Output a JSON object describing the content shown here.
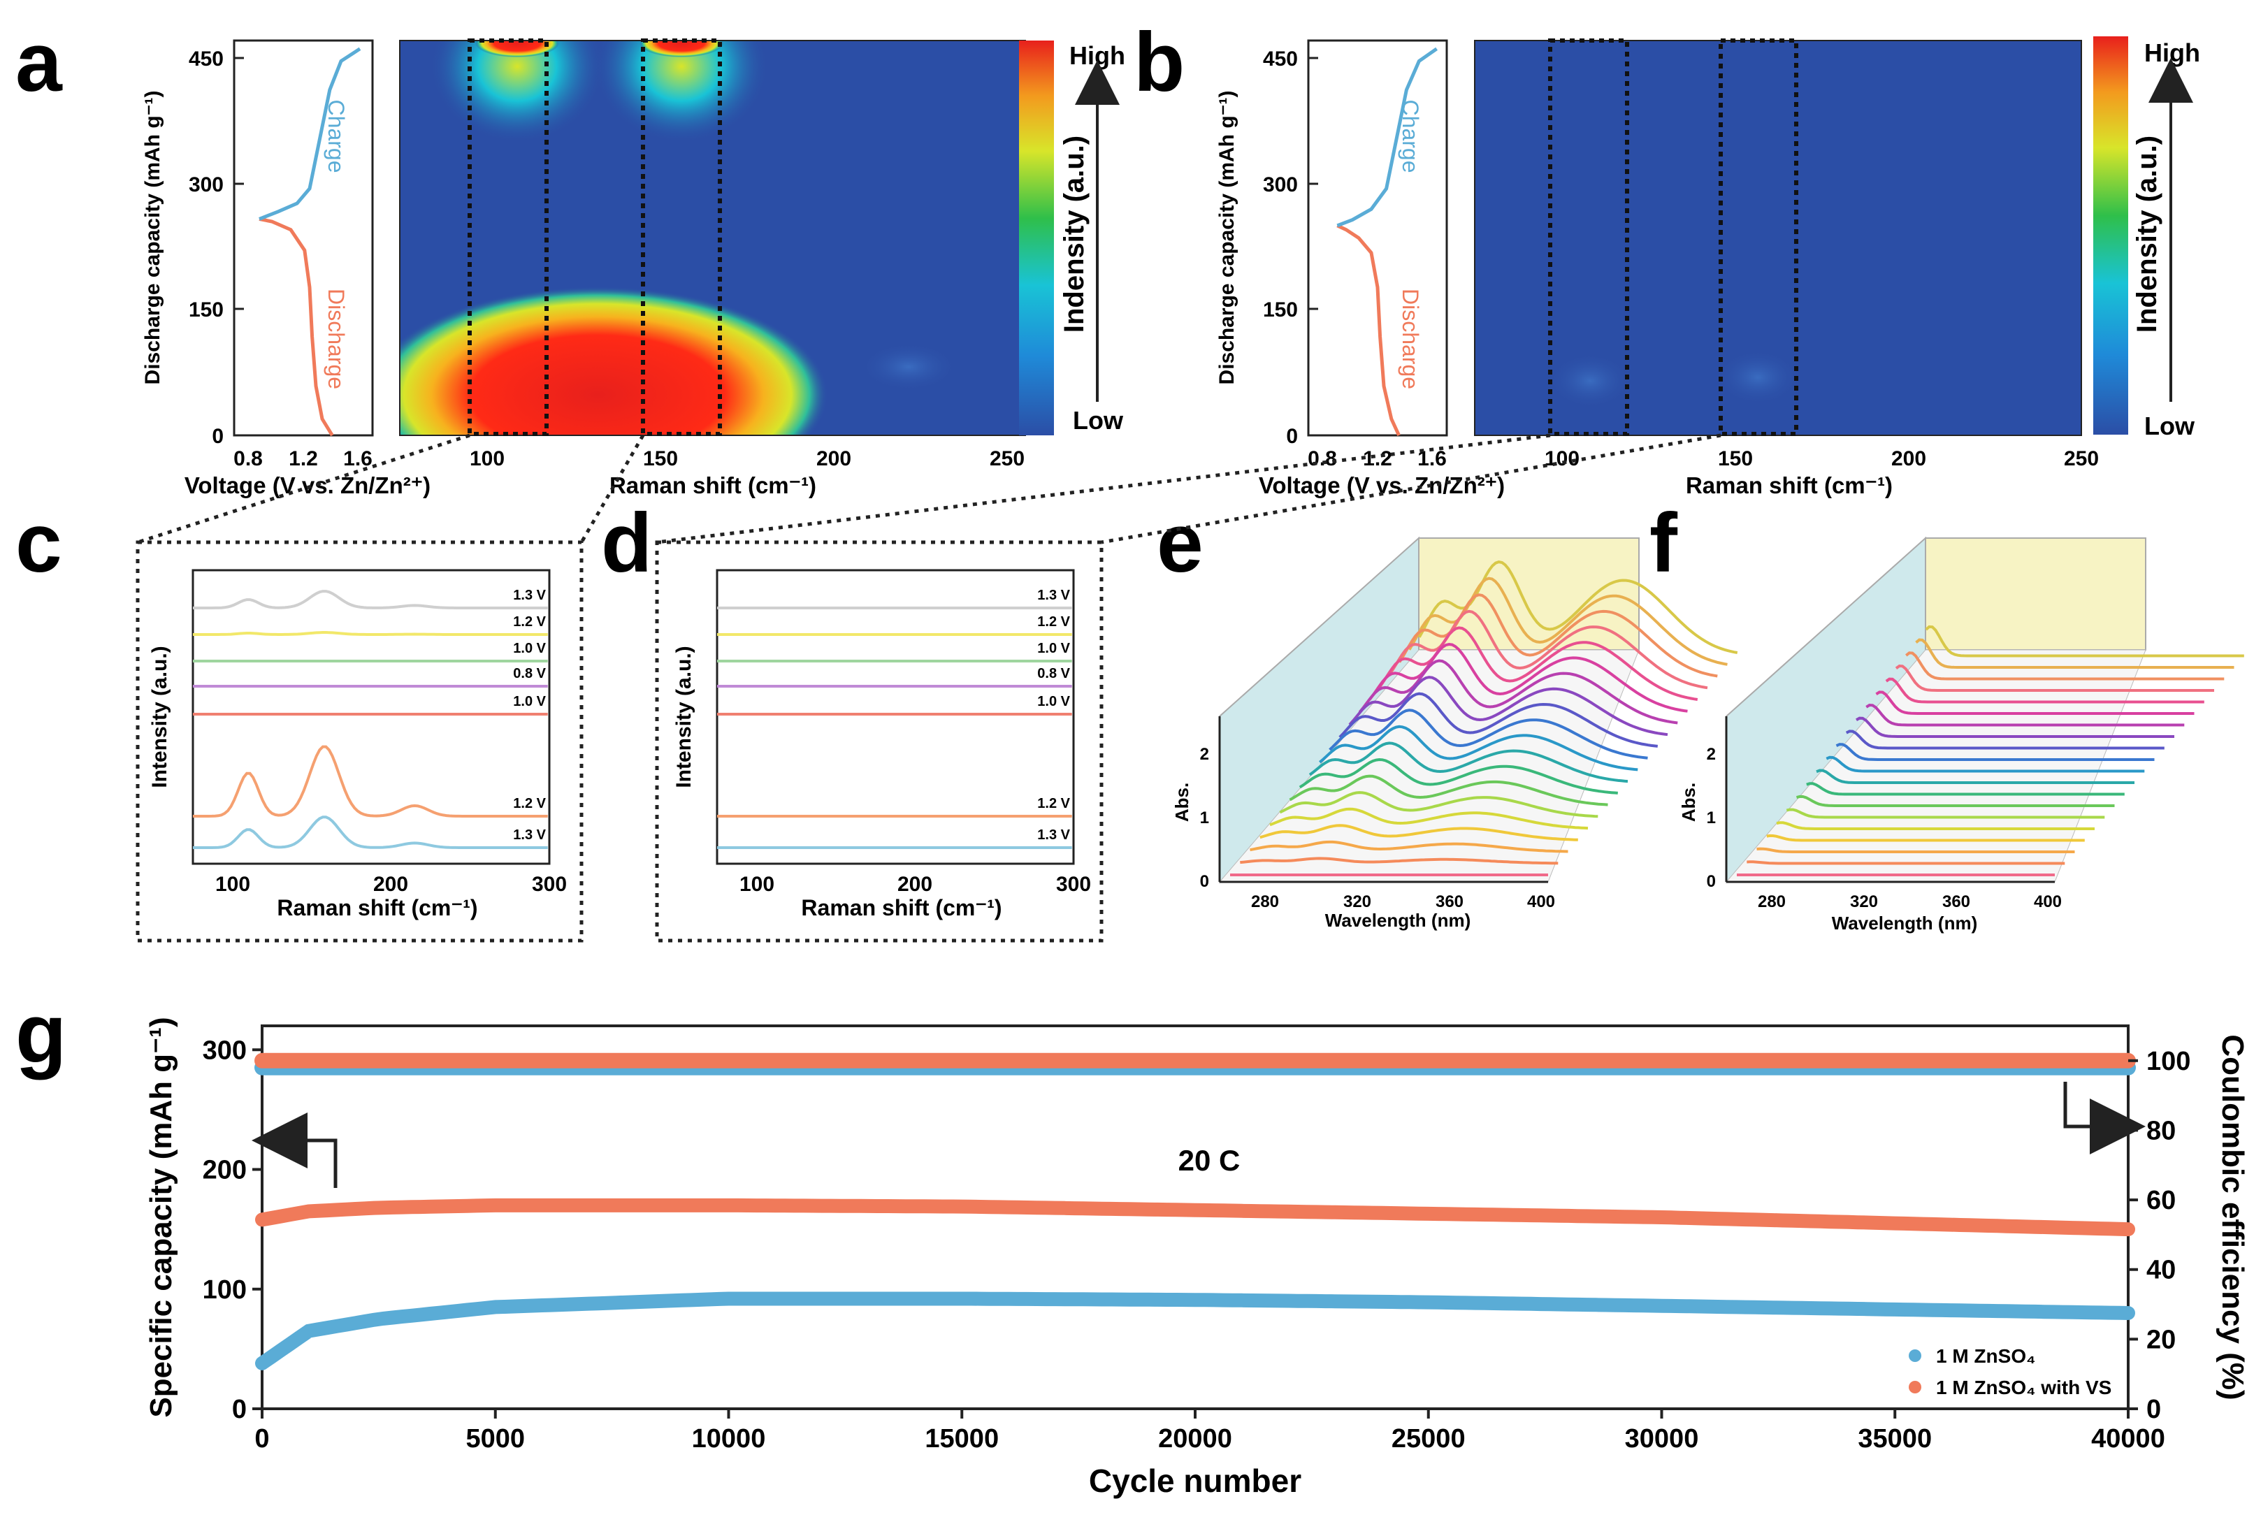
{
  "panel_letters": [
    "a",
    "b",
    "c",
    "d",
    "e",
    "f",
    "g"
  ],
  "colors": {
    "blue_line": "#5aacd6",
    "orange_line": "#f07a5a",
    "heat_bg": "#2b4ea6",
    "cyan_panel": "#cfe9ec",
    "yellow_panel": "#f7f3c4"
  },
  "chart_data": [
    {
      "id": "a_curve",
      "type": "line",
      "xlabel": "Voltage (V vs. Zn/Zn²⁺)",
      "ylabel": "Discharge capacity (mAh g⁻¹)",
      "xticks": [
        "0.8",
        "1.2",
        "1.6"
      ],
      "yticks": [
        "0",
        "150",
        "300",
        "450"
      ],
      "xlim": [
        0.6,
        1.7
      ],
      "ylim": [
        0,
        480
      ],
      "labels": {
        "charge": "Charge",
        "discharge": "Discharge"
      },
      "series": [
        {
          "name": "Discharge",
          "color": "#f07a5a",
          "points": [
            [
              1.38,
              0
            ],
            [
              1.3,
              20
            ],
            [
              1.25,
              60
            ],
            [
              1.22,
              120
            ],
            [
              1.2,
              180
            ],
            [
              1.16,
              225
            ],
            [
              1.05,
              250
            ],
            [
              0.9,
              260
            ],
            [
              0.8,
              263
            ]
          ]
        },
        {
          "name": "Charge",
          "color": "#5aacd6",
          "points": [
            [
              0.8,
              263
            ],
            [
              0.95,
              272
            ],
            [
              1.1,
              282
            ],
            [
              1.2,
              300
            ],
            [
              1.28,
              360
            ],
            [
              1.36,
              420
            ],
            [
              1.45,
              455
            ],
            [
              1.6,
              470
            ]
          ]
        }
      ]
    },
    {
      "id": "a_heatmap",
      "type": "heatmap",
      "xlabel": "Raman shift (cm⁻¹)",
      "xticks": [
        "100",
        "150",
        "200",
        "250"
      ],
      "xlim": [
        75,
        250
      ],
      "colorbar": {
        "title": "Indensity (a.u.)",
        "high": "High",
        "low": "Low"
      }
    },
    {
      "id": "b_curve",
      "type": "line",
      "xlabel": "Voltage (V vs. Zn/Zn²⁺)",
      "ylabel": "Discharge capacity (mAh g⁻¹)",
      "xticks": [
        "0.8",
        "1.2",
        "1.6"
      ],
      "yticks": [
        "0",
        "150",
        "300",
        "450"
      ],
      "xlim": [
        0.6,
        1.7
      ],
      "ylim": [
        0,
        480
      ],
      "labels": {
        "charge": "Charge",
        "discharge": "Discharge"
      },
      "series": [
        {
          "name": "Discharge",
          "color": "#f07a5a",
          "points": [
            [
              1.32,
              0
            ],
            [
              1.26,
              20
            ],
            [
              1.2,
              60
            ],
            [
              1.17,
              120
            ],
            [
              1.15,
              180
            ],
            [
              1.1,
              222
            ],
            [
              1.0,
              240
            ],
            [
              0.9,
              250
            ],
            [
              0.83,
              255
            ]
          ]
        },
        {
          "name": "Charge",
          "color": "#5aacd6",
          "points": [
            [
              0.83,
              255
            ],
            [
              0.95,
              262
            ],
            [
              1.1,
              275
            ],
            [
              1.22,
              300
            ],
            [
              1.3,
              360
            ],
            [
              1.38,
              420
            ],
            [
              1.48,
              455
            ],
            [
              1.62,
              470
            ]
          ]
        }
      ]
    },
    {
      "id": "b_heatmap",
      "type": "heatmap",
      "xlabel": "Raman shift (cm⁻¹)",
      "xticks": [
        "100",
        "150",
        "200",
        "250"
      ],
      "xlim": [
        75,
        250
      ],
      "colorbar": {
        "title": "Indensity (a.u.)",
        "high": "High",
        "low": "Low"
      }
    },
    {
      "id": "c",
      "type": "line",
      "xlabel": "Raman shift (cm⁻¹)",
      "ylabel": "Intensity (a.u.)",
      "xticks": [
        "100",
        "200",
        "300"
      ],
      "xlim": [
        75,
        300
      ],
      "trace_labels": [
        "1.3 V",
        "1.2 V",
        "1.0 V",
        "0.8 V",
        "1.0 V",
        "1.2 V",
        "1.3 V"
      ],
      "trace_colors": [
        "#cfcfcf",
        "#f2e86a",
        "#9fd59f",
        "#c08ad6",
        "#f08070",
        "#f5a070",
        "#8ec9e0"
      ],
      "trace_peaks": [
        [
          0.6,
          1.2
        ],
        [
          0.1,
          0.15
        ],
        [
          0,
          0
        ],
        [
          0,
          0
        ],
        [
          0,
          0
        ],
        [
          3.1,
          5.0
        ],
        [
          1.3,
          2.2
        ]
      ]
    },
    {
      "id": "d",
      "type": "line",
      "xlabel": "Raman shift (cm⁻¹)",
      "ylabel": "Intensity (a.u.)",
      "xticks": [
        "100",
        "200",
        "300"
      ],
      "xlim": [
        75,
        300
      ],
      "trace_labels": [
        "1.3 V",
        "1.2 V",
        "1.0 V",
        "0.8 V",
        "1.0 V",
        "1.2 V",
        "1.3 V"
      ],
      "trace_colors": [
        "#cfcfcf",
        "#f2e86a",
        "#9fd59f",
        "#c08ad6",
        "#f08070",
        "#f5a070",
        "#8ec9e0"
      ]
    },
    {
      "id": "e",
      "type": "line",
      "xlabel": "Wavelength (nm)",
      "ylabel": "Abs.",
      "xticks": [
        "280",
        "320",
        "360",
        "400"
      ],
      "yticks": [
        "0",
        "1",
        "2"
      ],
      "xlim": [
        260,
        400
      ],
      "ylim": [
        0,
        2.5
      ]
    },
    {
      "id": "f",
      "type": "line",
      "xlabel": "Wavelength (nm)",
      "ylabel": "Abs.",
      "xticks": [
        "280",
        "320",
        "360",
        "400"
      ],
      "yticks": [
        "0",
        "1",
        "2"
      ],
      "xlim": [
        260,
        400
      ],
      "ylim": [
        0,
        2.5
      ]
    },
    {
      "id": "g",
      "type": "scatter",
      "xlabel": "Cycle number",
      "ylabel": "Specific capacity (mAh g⁻¹)",
      "y2label": "Coulombic efficiency (%)",
      "annotation": "20 C",
      "xticks": [
        "0",
        "5000",
        "10000",
        "15000",
        "20000",
        "25000",
        "30000",
        "35000",
        "40000"
      ],
      "yticks": [
        "0",
        "100",
        "200",
        "300"
      ],
      "y2ticks": [
        "0",
        "20",
        "40",
        "60",
        "80",
        "100"
      ],
      "xlim": [
        0,
        40000
      ],
      "ylim": [
        0,
        320
      ],
      "y2lim": [
        0,
        110
      ],
      "legend_position": "bottom-right",
      "series": [
        {
          "name": "1 M ZnSO₄",
          "color": "#5aacd6",
          "x": [
            0,
            1000,
            2500,
            5000,
            10000,
            15000,
            20000,
            25000,
            30000,
            35000,
            40000
          ],
          "capacity": [
            38,
            65,
            75,
            85,
            92,
            92,
            91,
            89,
            86,
            83,
            80
          ],
          "efficiency": [
            98,
            98,
            98,
            98,
            98,
            98,
            98,
            98,
            98,
            98,
            98
          ]
        },
        {
          "name": "1 M ZnSO₄ with VS",
          "color": "#f07a5a",
          "x": [
            0,
            1000,
            2500,
            5000,
            10000,
            15000,
            20000,
            25000,
            30000,
            35000,
            40000
          ],
          "capacity": [
            158,
            165,
            168,
            170,
            170,
            169,
            166,
            163,
            160,
            155,
            150
          ],
          "efficiency": [
            100,
            100,
            100,
            100,
            100,
            100,
            100,
            100,
            100,
            100,
            100
          ]
        }
      ]
    }
  ]
}
